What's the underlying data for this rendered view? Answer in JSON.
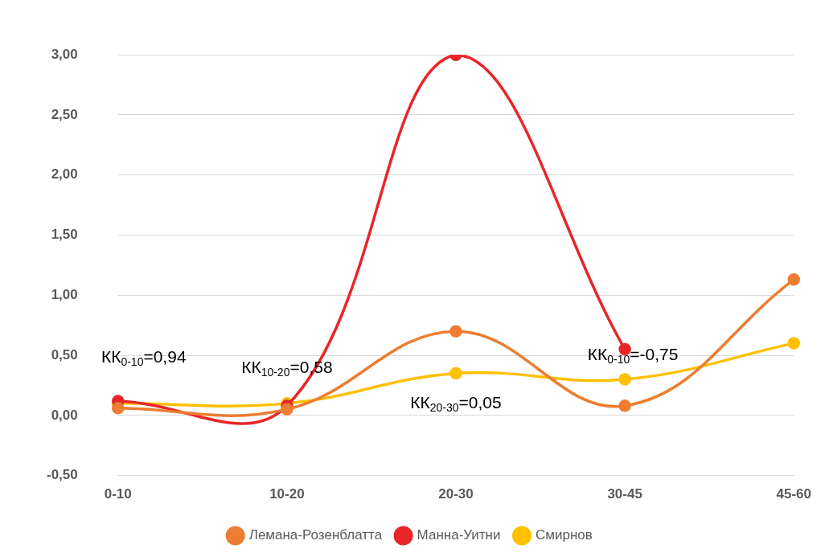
{
  "chart_data": {
    "type": "line",
    "categories": [
      "0-10",
      "10-20",
      "20-30",
      "30-45",
      "45-60"
    ],
    "series": [
      {
        "name": "Лемана-Розенблатта",
        "color": "#ed7d31",
        "values": [
          0.06,
          0.05,
          0.7,
          0.08,
          1.13
        ]
      },
      {
        "name": "Манна-Уитни",
        "color": "#e8262a",
        "values": [
          0.12,
          0.08,
          3.0,
          0.55,
          null
        ]
      },
      {
        "name": "Смирнов",
        "color": "#ffc000",
        "values": [
          0.1,
          0.1,
          0.35,
          0.3,
          0.6
        ]
      }
    ],
    "ylim": [
      -0.5,
      3
    ],
    "yticks": [
      {
        "value": -0.5,
        "label": "-0,50"
      },
      {
        "value": 0,
        "label": "0,00"
      },
      {
        "value": 0.5,
        "label": "0,50"
      },
      {
        "value": 1,
        "label": "1,00"
      },
      {
        "value": 1.5,
        "label": "1,50"
      },
      {
        "value": 2,
        "label": "2,00"
      },
      {
        "value": 2.5,
        "label": "2,50"
      },
      {
        "value": 3,
        "label": "3,00"
      }
    ],
    "grid": "y",
    "legend": "bottom",
    "marker": "circle",
    "line_style": "solid",
    "annotations": [
      "КК$_{0-10}$=0,94",
      "КК$_{10-20}$=0,58",
      "КК$_{20-30}$=0,05",
      "КК$_{0-10}$=-0,75"
    ]
  }
}
